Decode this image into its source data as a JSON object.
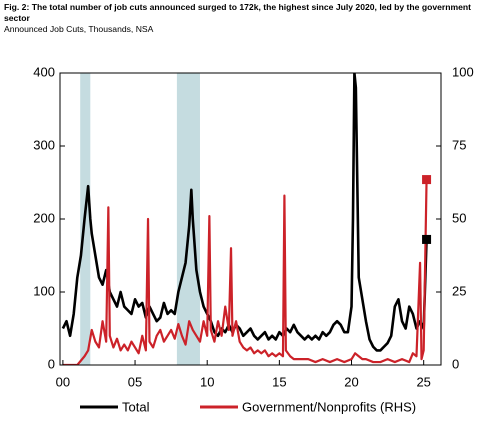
{
  "chart_data": {
    "type": "line",
    "title": "Fig. 2: The total number of job cuts announced surged to 172k, the highest since July 2020, led by the government sector",
    "subtitle": "Announced Job Cuts, Thousands, NSA",
    "xlim": [
      -0.2,
      26.2
    ],
    "xticks": [
      {
        "value": 0,
        "label": "00"
      },
      {
        "value": 5,
        "label": "05"
      },
      10,
      15,
      20,
      25
    ],
    "ylim": [
      0,
      400
    ],
    "yticks": [
      0,
      100,
      200,
      300,
      400
    ],
    "y2lim": [
      0,
      100
    ],
    "y2ticks": [
      0,
      25,
      50,
      75,
      100
    ],
    "shaded_periods": [
      [
        1.2,
        1.9
      ],
      [
        7.9,
        9.5
      ]
    ],
    "shade_color": "#c5dce0",
    "series": [
      {
        "name": "Total",
        "color": "#000000",
        "x": [
          0,
          0.25,
          0.5,
          0.75,
          1,
          1.25,
          1.5,
          1.75,
          1.9,
          2,
          2.25,
          2.5,
          2.75,
          3,
          3.25,
          3.5,
          3.75,
          4,
          4.25,
          4.5,
          4.75,
          5,
          5.25,
          5.5,
          5.75,
          6,
          6.25,
          6.5,
          6.75,
          7,
          7.25,
          7.5,
          7.75,
          8,
          8.25,
          8.5,
          8.75,
          8.9,
          9,
          9.25,
          9.5,
          9.75,
          10,
          10.25,
          10.5,
          10.75,
          11,
          11.25,
          11.5,
          11.75,
          12,
          12.25,
          12.5,
          12.75,
          13,
          13.25,
          13.5,
          13.75,
          14,
          14.25,
          14.5,
          14.75,
          15,
          15.25,
          15.5,
          15.75,
          16,
          16.25,
          16.5,
          16.75,
          17,
          17.25,
          17.5,
          17.75,
          18,
          18.25,
          18.5,
          18.75,
          19,
          19.25,
          19.5,
          19.75,
          20,
          20.1,
          20.2,
          20.3,
          20.4,
          20.5,
          20.75,
          21,
          21.25,
          21.5,
          21.75,
          22,
          22.25,
          22.5,
          22.75,
          23,
          23.25,
          23.5,
          23.75,
          24,
          24.25,
          24.5,
          24.75,
          25,
          25.2
        ],
        "values": [
          50,
          60,
          40,
          70,
          120,
          150,
          200,
          245,
          200,
          180,
          150,
          120,
          110,
          130,
          100,
          90,
          80,
          100,
          80,
          75,
          70,
          90,
          80,
          85,
          65,
          80,
          70,
          60,
          65,
          85,
          70,
          75,
          70,
          100,
          120,
          140,
          190,
          240,
          200,
          130,
          100,
          80,
          70,
          60,
          45,
          40,
          50,
          45,
          55,
          45,
          55,
          50,
          40,
          45,
          50,
          40,
          35,
          40,
          45,
          35,
          40,
          35,
          45,
          40,
          50,
          45,
          55,
          45,
          40,
          35,
          40,
          35,
          40,
          35,
          45,
          40,
          45,
          55,
          60,
          55,
          45,
          45,
          80,
          200,
          400,
          380,
          250,
          120,
          90,
          60,
          35,
          25,
          20,
          20,
          25,
          30,
          40,
          80,
          90,
          60,
          50,
          80,
          70,
          50,
          60,
          50,
          172
        ]
      },
      {
        "name": "Government/Nonprofits (RHS)",
        "color": "#cc2229",
        "axis": "y2",
        "x": [
          0,
          0.5,
          1,
          1.5,
          1.75,
          2,
          2.25,
          2.5,
          2.75,
          3,
          3.15,
          3.25,
          3.5,
          3.75,
          4,
          4.25,
          4.5,
          4.75,
          5,
          5.25,
          5.5,
          5.75,
          5.9,
          6,
          6.25,
          6.5,
          6.75,
          7,
          7.25,
          7.5,
          7.75,
          8,
          8.25,
          8.5,
          8.75,
          9,
          9.25,
          9.5,
          9.75,
          10,
          10.15,
          10.25,
          10.5,
          10.75,
          11,
          11.25,
          11.5,
          11.65,
          11.75,
          12,
          12.25,
          12.5,
          12.75,
          13,
          13.25,
          13.5,
          13.75,
          14,
          14.25,
          14.5,
          14.75,
          15,
          15.25,
          15.35,
          15.45,
          15.75,
          16,
          16.5,
          17,
          17.5,
          18,
          18.5,
          19,
          19.5,
          20,
          20.25,
          20.5,
          20.75,
          21,
          21.5,
          22,
          22.5,
          23,
          23.5,
          24,
          24.25,
          24.5,
          24.75,
          24.85,
          25,
          25.2
        ],
        "values": [
          0,
          0,
          0,
          3,
          5,
          12,
          8,
          6,
          15,
          8,
          54,
          10,
          6,
          9,
          5,
          7,
          5,
          8,
          6,
          4,
          10,
          5,
          50,
          8,
          6,
          10,
          12,
          8,
          10,
          12,
          9,
          14,
          10,
          7,
          15,
          12,
          10,
          8,
          15,
          10,
          51,
          12,
          8,
          15,
          10,
          20,
          12,
          40,
          10,
          15,
          8,
          6,
          5,
          6,
          4,
          5,
          4,
          5,
          3,
          4,
          3,
          4,
          3,
          58,
          5,
          3,
          2,
          2,
          2,
          1,
          2,
          1,
          2,
          1,
          2,
          4,
          3,
          2,
          2,
          1,
          1,
          2,
          1,
          2,
          1,
          4,
          3,
          35,
          2,
          5,
          63.5
        ]
      }
    ]
  }
}
